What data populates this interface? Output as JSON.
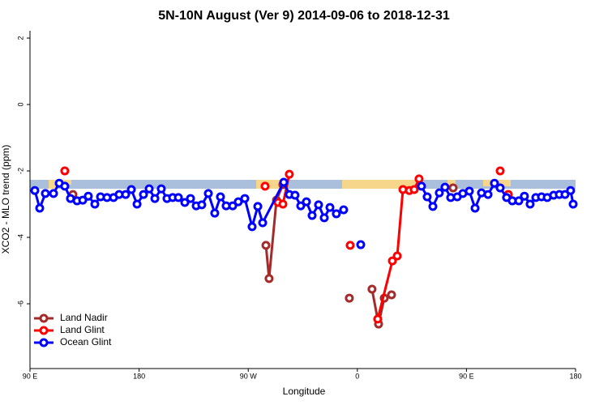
{
  "chart_data": {
    "type": "line",
    "title": "5N-10N August (Ver 9)   2014-09-06 to 2018-12-31",
    "x_label": "Longitude",
    "y_label": "XCO2 - MLO trend (ppm)",
    "xlim": [
      90,
      540
    ],
    "xticks": [
      {
        "value": 90,
        "label": "90 E"
      },
      180,
      {
        "value": 270,
        "label": "90 W"
      },
      {
        "value": 360,
        "label": "0"
      },
      {
        "value": 450,
        "label": "90 E"
      },
      {
        "value": 540,
        "label": "180"
      }
    ],
    "ylim": [
      -7.95,
      2.22
    ],
    "yticks": [
      2,
      0,
      -2,
      -4,
      -6
    ],
    "grid": false,
    "legend": "bottom left",
    "series": [
      {
        "name": "Land Nadir",
        "color": "#a52a2a",
        "x": [
          125.4,
          null,
          284.6,
          287.2,
          293.3,
          298.6,
          null,
          353.4,
          null,
          372.1,
          377.5,
          382.2,
          388.2,
          null,
          439.0,
          null,
          484.5
        ],
        "values": [
          -2.71,
          null,
          -4.24,
          -5.24,
          -2.88,
          -2.41,
          null,
          -5.83,
          null,
          -5.56,
          -6.61,
          -5.83,
          -5.73,
          null,
          -2.51,
          null,
          -2.71
        ]
      },
      {
        "name": "Land Glint",
        "color": "#ff0000",
        "x": [
          118.7,
          null,
          283.9,
          null,
          294.6,
          298.6,
          303.9,
          null,
          354.1,
          null,
          376.8,
          388.9,
          392.9,
          397.6,
          402.9,
          406.9,
          410.9,
          null,
          477.8,
          null,
          484.5
        ],
        "values": [
          -2.0,
          null,
          -2.46,
          null,
          -2.95,
          -3.0,
          -2.1,
          null,
          -4.24,
          null,
          -6.46,
          -4.71,
          -4.56,
          -2.56,
          -2.59,
          -2.56,
          -2.24,
          null,
          -2.0,
          null,
          -2.71
        ]
      },
      {
        "name": "Ocean Glint",
        "color": "#0000ff",
        "x": [
          94.0,
          98.0,
          102.7,
          109.4,
          114.1,
          118.7,
          123.4,
          128.8,
          133.5,
          138.1,
          143.5,
          148.2,
          153.5,
          158.9,
          163.5,
          168.9,
          173.6,
          178.3,
          183.6,
          188.3,
          193.0,
          198.3,
          203.0,
          207.7,
          212.4,
          217.7,
          222.4,
          227.1,
          231.7,
          237.1,
          242.4,
          247.1,
          251.8,
          257.2,
          261.8,
          267.2,
          273.2,
          277.9,
          281.9,
          299.3,
          303.9,
          308.6,
          313.3,
          318.0,
          322.7,
          328.0,
          332.7,
          337.4,
          342.7,
          348.7,
          null,
          362.8,
          null,
          412.9,
          417.6,
          422.3,
          427.6,
          432.3,
          437.0,
          442.4,
          447.0,
          452.4,
          457.1,
          462.4,
          467.8,
          473.1,
          477.8,
          483.1,
          487.8,
          493.2,
          497.8,
          502.5,
          507.2,
          511.9,
          516.6,
          521.9,
          526.6,
          531.3,
          535.9,
          538.0
        ],
        "values": [
          -2.59,
          -3.12,
          -2.68,
          -2.68,
          -2.37,
          -2.46,
          -2.83,
          -2.9,
          -2.88,
          -2.76,
          -3.0,
          -2.78,
          -2.8,
          -2.8,
          -2.71,
          -2.71,
          -2.56,
          -3.0,
          -2.71,
          -2.54,
          -2.83,
          -2.54,
          -2.83,
          -2.8,
          -2.8,
          -2.95,
          -2.83,
          -3.05,
          -3.02,
          -2.68,
          -3.27,
          -2.78,
          -3.05,
          -3.05,
          -2.93,
          -2.83,
          -3.68,
          -3.07,
          -3.56,
          -2.34,
          -2.71,
          -2.73,
          -3.05,
          -2.93,
          -3.34,
          -3.02,
          -3.41,
          -3.1,
          -3.29,
          -3.17,
          null,
          -4.22,
          null,
          -2.46,
          -2.78,
          -3.07,
          -2.66,
          -2.49,
          -2.8,
          -2.78,
          -2.68,
          -2.61,
          -3.12,
          -2.66,
          -2.71,
          -2.37,
          -2.51,
          -2.8,
          -2.9,
          -2.9,
          -2.76,
          -3.0,
          -2.8,
          -2.78,
          -2.8,
          -2.73,
          -2.71,
          -2.71,
          -2.59,
          -3.0
        ]
      }
    ]
  }
}
